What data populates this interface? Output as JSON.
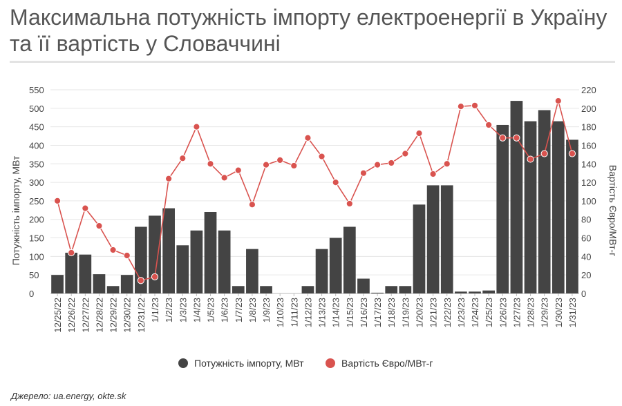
{
  "title": "Максимальна потужність імпорту електроенергії в Україну та її вартість у Словаччині",
  "source": "Джерело: ua.energy, okte.sk",
  "chart_data": {
    "type": "bar+line",
    "categories": [
      "12/25/22",
      "12/26/22",
      "12/27/22",
      "12/28/22",
      "12/29/22",
      "12/30/22",
      "12/31/22",
      "1/1/23",
      "1/2/23",
      "1/3/23",
      "1/4/23",
      "1/5/23",
      "1/6/23",
      "1/7/23",
      "1/8/23",
      "1/9/23",
      "1/10/23",
      "1/11/23",
      "1/12/23",
      "1/13/23",
      "1/14/23",
      "1/15/23",
      "1/16/23",
      "1/17/23",
      "1/18/23",
      "1/19/23",
      "1/20/23",
      "1/21/23",
      "1/22/23",
      "1/23/23",
      "1/24/23",
      "1/25/23",
      "1/26/23",
      "1/27/23",
      "1/28/23",
      "1/29/23",
      "1/30/23",
      "1/31/23"
    ],
    "series": [
      {
        "name": "Потужність імпорту, МВт",
        "type": "bar",
        "axis": "left",
        "color": "#444444",
        "values": [
          50,
          110,
          105,
          52,
          20,
          50,
          180,
          210,
          230,
          130,
          170,
          220,
          170,
          20,
          120,
          20,
          0,
          0,
          20,
          120,
          150,
          180,
          40,
          2,
          20,
          20,
          240,
          292,
          292,
          5,
          5,
          8,
          455,
          520,
          465,
          495,
          465,
          415
        ]
      },
      {
        "name": "Вартість Євро/МВт-г",
        "type": "line",
        "axis": "right",
        "color": "#d9534f",
        "values": [
          100,
          44,
          92,
          73,
          47,
          41,
          14,
          18,
          124,
          146,
          180,
          140,
          125,
          133,
          96,
          139,
          144,
          138,
          168,
          148,
          120,
          97,
          130,
          139,
          141,
          151,
          173,
          129,
          140,
          202,
          203,
          182,
          168,
          168,
          145,
          151,
          208,
          151
        ]
      }
    ],
    "ylabel": "Потужність імпорту, МВт",
    "y2label": "Вартість Євро/МВт-г",
    "ylim": [
      0,
      550
    ],
    "y2lim": [
      0,
      220
    ],
    "yticks": [
      0,
      50,
      100,
      150,
      200,
      250,
      300,
      350,
      400,
      450,
      500,
      550
    ],
    "y2ticks": [
      0,
      20,
      40,
      60,
      80,
      100,
      120,
      140,
      160,
      180,
      200,
      220
    ],
    "grid": true,
    "legend": "bottom"
  }
}
